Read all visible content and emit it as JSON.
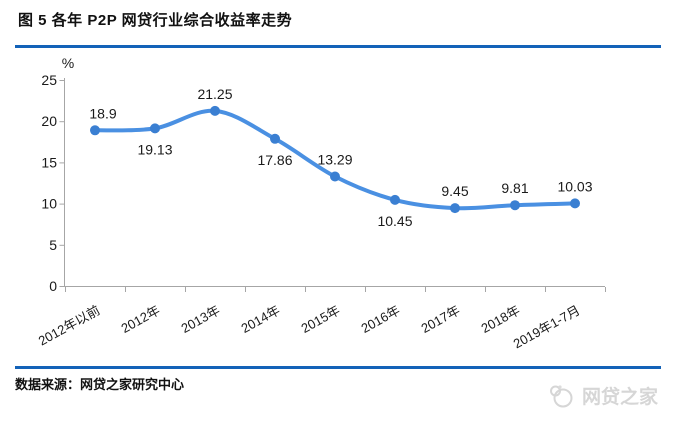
{
  "header": {
    "title": "图 5 各年 P2P 网贷行业综合收益率走势"
  },
  "chart_data": {
    "type": "line",
    "title": "图 5 各年 P2P 网贷行业综合收益率走势",
    "categories": [
      "2012年以前",
      "2012年",
      "2013年",
      "2014年",
      "2015年",
      "2016年",
      "2017年",
      "2018年",
      "2019年1-7月"
    ],
    "values": [
      18.9,
      19.13,
      21.25,
      17.86,
      13.29,
      10.45,
      9.45,
      9.81,
      10.03
    ],
    "data_labels": [
      "18.9",
      "19.13",
      "21.25",
      "17.86",
      "13.29",
      "10.45",
      "9.45",
      "9.81",
      "10.03"
    ],
    "label_side": [
      "above",
      "below",
      "above",
      "below",
      "above",
      "below",
      "above",
      "above",
      "above"
    ],
    "ylabel": "%",
    "ylim": [
      0,
      25
    ],
    "yticks": [
      0,
      5,
      10,
      15,
      20,
      25
    ],
    "grid": false,
    "legend": false,
    "smooth": true,
    "line_color": "#4a90e2",
    "marker_color": "#3a7fd2"
  },
  "footer": {
    "source": "数据来源：网贷之家研究中心"
  },
  "watermark": {
    "icon": "wangdaizhijia-logo",
    "text": "网贷之家"
  },
  "colors": {
    "divider_blue": "#1362b8",
    "axis_gray": "#a6a6a6",
    "label_black": "#1a1a1a",
    "watermark_gray": "#d6d6d6",
    "background": "#ffffff"
  }
}
